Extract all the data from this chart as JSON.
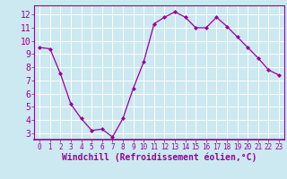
{
  "x": [
    0,
    1,
    2,
    3,
    4,
    5,
    6,
    7,
    8,
    9,
    10,
    11,
    12,
    13,
    14,
    15,
    16,
    17,
    18,
    19,
    20,
    21,
    22,
    23
  ],
  "y": [
    9.5,
    9.4,
    7.5,
    5.2,
    4.1,
    3.2,
    3.3,
    2.7,
    4.1,
    6.4,
    8.4,
    11.3,
    11.8,
    12.2,
    11.8,
    11.0,
    11.0,
    11.8,
    11.1,
    10.3,
    9.5,
    8.7,
    7.8,
    7.4
  ],
  "line_color": "#990099",
  "marker": "D",
  "marker_size": 2,
  "bg_color": "#cce8f0",
  "grid_color": "#ffffff",
  "xlabel": "Windchill (Refroidissement éolien,°C)",
  "xlabel_color": "#990099",
  "tick_color": "#990099",
  "ylim": [
    2.5,
    12.7
  ],
  "xlim": [
    -0.5,
    23.5
  ],
  "yticks": [
    3,
    4,
    5,
    6,
    7,
    8,
    9,
    10,
    11,
    12
  ],
  "xticks": [
    0,
    1,
    2,
    3,
    4,
    5,
    6,
    7,
    8,
    9,
    10,
    11,
    12,
    13,
    14,
    15,
    16,
    17,
    18,
    19,
    20,
    21,
    22,
    23
  ],
  "spine_color": "#990099",
  "ytick_fontsize": 7,
  "xtick_fontsize": 5.5,
  "xlabel_fontsize": 7
}
